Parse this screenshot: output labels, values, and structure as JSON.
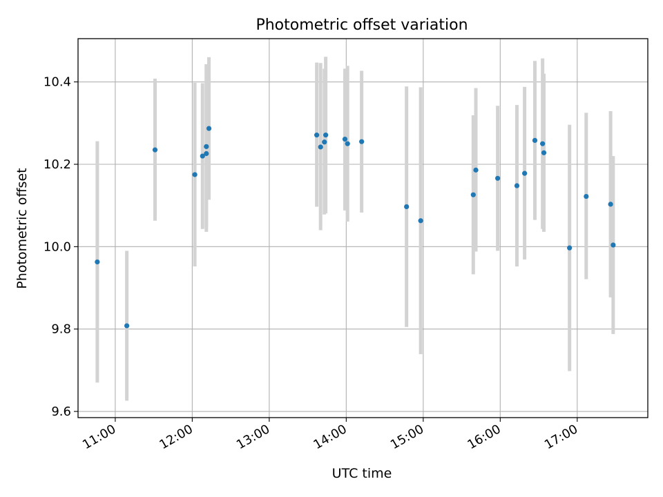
{
  "chart_data": {
    "type": "scatter",
    "title": "Photometric offset variation",
    "xlabel": "UTC time",
    "ylabel": "Photometric offset",
    "x_tick_labels": [
      "11:00",
      "12:00",
      "13:00",
      "14:00",
      "15:00",
      "16:00",
      "17:00"
    ],
    "y_tick_labels": [
      "9.6",
      "9.8",
      "10.0",
      "10.2",
      "10.4"
    ],
    "y_ticks": [
      9.6,
      9.8,
      10.0,
      10.2,
      10.4
    ],
    "xlim": [
      "10:31",
      "17:55"
    ],
    "ylim": [
      9.585,
      10.505
    ],
    "grid": true,
    "colors": {
      "points": "#1f77b4",
      "error_bars": "#d3d3d3",
      "grid": "#b0b0b0"
    },
    "points": [
      {
        "x": "10:46",
        "y": 9.963,
        "low": 9.67,
        "high": 10.256
      },
      {
        "x": "11:09",
        "y": 9.808,
        "low": 9.626,
        "high": 9.99
      },
      {
        "x": "11:31",
        "y": 10.235,
        "low": 10.063,
        "high": 10.408
      },
      {
        "x": "12:02",
        "y": 10.175,
        "low": 9.952,
        "high": 10.398
      },
      {
        "x": "12:08",
        "y": 10.22,
        "low": 10.043,
        "high": 10.397
      },
      {
        "x": "12:11",
        "y": 10.226,
        "low": 10.036,
        "high": 10.443
      },
      {
        "x": "12:11",
        "y": 10.243,
        "low": 10.047,
        "high": 10.44
      },
      {
        "x": "12:13",
        "y": 10.287,
        "low": 10.114,
        "high": 10.46
      },
      {
        "x": "13:37",
        "y": 10.271,
        "low": 10.097,
        "high": 10.447
      },
      {
        "x": "13:40",
        "y": 10.242,
        "low": 10.04,
        "high": 10.446
      },
      {
        "x": "13:43",
        "y": 10.254,
        "low": 10.078,
        "high": 10.432
      },
      {
        "x": "13:44",
        "y": 10.271,
        "low": 10.081,
        "high": 10.461
      },
      {
        "x": "13:59",
        "y": 10.261,
        "low": 10.088,
        "high": 10.432
      },
      {
        "x": "14:01",
        "y": 10.25,
        "low": 10.061,
        "high": 10.439
      },
      {
        "x": "14:12",
        "y": 10.255,
        "low": 10.083,
        "high": 10.427
      },
      {
        "x": "14:47",
        "y": 10.097,
        "low": 9.805,
        "high": 10.389
      },
      {
        "x": "14:58",
        "y": 10.063,
        "low": 9.739,
        "high": 10.387
      },
      {
        "x": "15:39",
        "y": 10.126,
        "low": 9.933,
        "high": 10.319
      },
      {
        "x": "15:41",
        "y": 10.186,
        "low": 9.988,
        "high": 10.385
      },
      {
        "x": "15:58",
        "y": 10.166,
        "low": 9.99,
        "high": 10.342
      },
      {
        "x": "16:13",
        "y": 10.148,
        "low": 9.952,
        "high": 10.344
      },
      {
        "x": "16:19",
        "y": 10.178,
        "low": 9.969,
        "high": 10.388
      },
      {
        "x": "16:27",
        "y": 10.258,
        "low": 10.065,
        "high": 10.451
      },
      {
        "x": "16:33",
        "y": 10.25,
        "low": 10.043,
        "high": 10.457
      },
      {
        "x": "16:34",
        "y": 10.228,
        "low": 10.036,
        "high": 10.42
      },
      {
        "x": "16:54",
        "y": 9.997,
        "low": 9.698,
        "high": 10.296
      },
      {
        "x": "17:07",
        "y": 10.122,
        "low": 9.921,
        "high": 10.325
      },
      {
        "x": "17:26",
        "y": 10.103,
        "low": 9.877,
        "high": 10.329
      },
      {
        "x": "17:28",
        "y": 10.004,
        "low": 9.788,
        "high": 10.22
      }
    ]
  }
}
